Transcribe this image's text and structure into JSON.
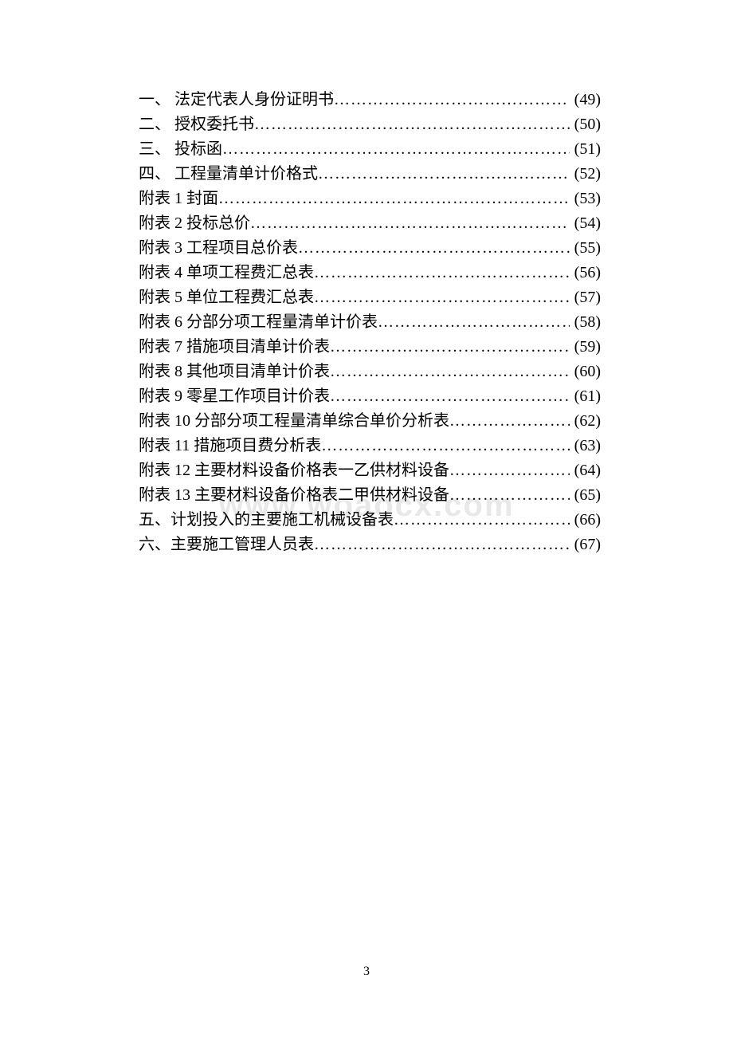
{
  "watermark": "www.woaocx.com",
  "page_number": "3",
  "dots_fill": "…………………………………………………………………………………………",
  "toc": {
    "font_size": 20,
    "line_height": 31,
    "text_color": "#000000",
    "background_color": "#ffffff",
    "entries": [
      {
        "label": "一、 法定代表人身份证明书",
        "page": "(49)"
      },
      {
        "label": "二、 授权委托书",
        "page": "(50)"
      },
      {
        "label": "三、 投标函",
        "page": "(51)"
      },
      {
        "label": "四、 工程量清单计价格式",
        "page": "(52)"
      },
      {
        "label": "附表 1 封面",
        "page": "(53)"
      },
      {
        "label": "附表 2 投标总价",
        "page": "(54)"
      },
      {
        "label": "附表 3 工程项目总价表",
        "page": "(55)"
      },
      {
        "label": "附表 4 单项工程费汇总表",
        "page": "(56)"
      },
      {
        "label": "附表 5 单位工程费汇总表",
        "page": "(57)"
      },
      {
        "label": "附表 6 分部分项工程量清单计价表",
        "page": "(58)"
      },
      {
        "label": "附表 7 措施项目清单计价表",
        "page": "(59)"
      },
      {
        "label": "附表 8 其他项目清单计价表",
        "page": "(60)"
      },
      {
        "label": "附表 9 零星工作项目计价表",
        "page": "(61)"
      },
      {
        "label": "附表 10 分部分项工程量清单综合单价分析表",
        "page": "(62)"
      },
      {
        "label": "附表 11 措施项目费分析表",
        "page": "(63)"
      },
      {
        "label": "附表 12 主要材料设备价格表一乙供材料设备",
        "page": "(64)"
      },
      {
        "label": "附表 13 主要材料设备价格表二甲供材料设备",
        "page": "(65)"
      },
      {
        "label": "五、计划投入的主要施工机械设备表",
        "page": "(66)"
      },
      {
        "label": "六、主要施工管理人员表",
        "page": "(67)"
      }
    ]
  }
}
